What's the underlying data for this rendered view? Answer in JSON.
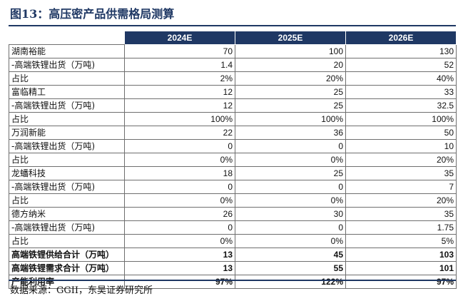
{
  "title": "图13：高压密产品供需格局测算",
  "columns": [
    "2024E",
    "2025E",
    "2026E"
  ],
  "rows": [
    {
      "label": "湖南裕能",
      "values": [
        "70",
        "100",
        "130"
      ]
    },
    {
      "label": "-高端铁锂出货（万吨)",
      "values": [
        "1.4",
        "20",
        "52"
      ]
    },
    {
      "label": "占比",
      "values": [
        "2%",
        "20%",
        "40%"
      ]
    },
    {
      "label": "富临精工",
      "values": [
        "12",
        "25",
        "33"
      ]
    },
    {
      "label": "-高端铁锂出货（万吨)",
      "values": [
        "12",
        "25",
        "32.5"
      ]
    },
    {
      "label": "占比",
      "values": [
        "100%",
        "100%",
        "100%"
      ]
    },
    {
      "label": "万润新能",
      "values": [
        "22",
        "36",
        "50"
      ]
    },
    {
      "label": "-高端铁锂出货（万吨)",
      "values": [
        "0",
        "0",
        "10"
      ]
    },
    {
      "label": "占比",
      "values": [
        "0%",
        "0%",
        "20%"
      ]
    },
    {
      "label": "龙蟠科技",
      "values": [
        "18",
        "25",
        "35"
      ]
    },
    {
      "label": "-高端铁锂出货（万吨)",
      "values": [
        "0",
        "0",
        "7"
      ]
    },
    {
      "label": "占比",
      "values": [
        "0%",
        "0%",
        "20%"
      ]
    },
    {
      "label": "德方纳米",
      "values": [
        "26",
        "30",
        "35"
      ]
    },
    {
      "label": "-高端铁锂出货（万吨)",
      "values": [
        "0",
        "0",
        "1.75"
      ]
    },
    {
      "label": "占比",
      "values": [
        "0%",
        "0%",
        "5%"
      ]
    },
    {
      "label": "高端铁锂供给合计（万吨）",
      "values": [
        "13",
        "45",
        "103"
      ],
      "total": true
    },
    {
      "label": "高端铁锂需求合计（万吨）",
      "values": [
        "13",
        "55",
        "101"
      ],
      "total": true
    },
    {
      "label": "产能利用率",
      "values": [
        "97%",
        "122%",
        "97%"
      ],
      "total": true
    }
  ],
  "source": "数据来源：GGII，东吴证券研究所",
  "colors": {
    "header_bg": "#1f3864",
    "title": "#1f3864"
  }
}
